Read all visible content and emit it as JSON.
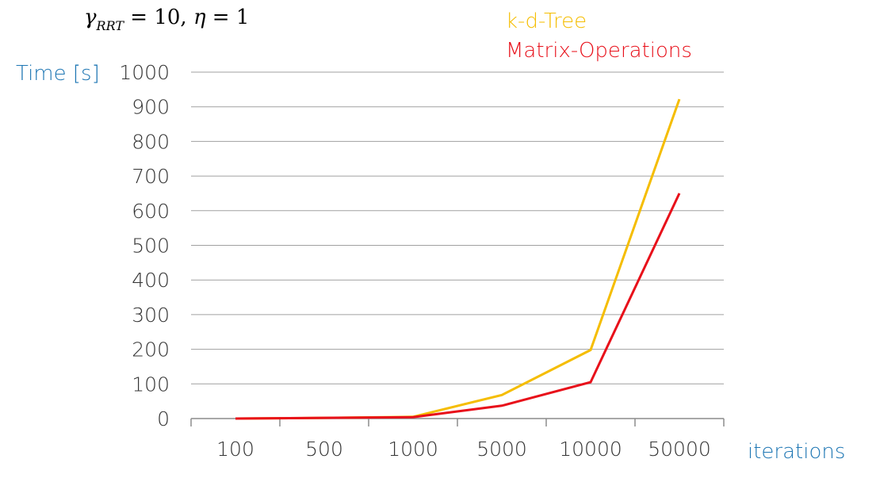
{
  "chart_data": {
    "type": "line",
    "annotation": "γRRT = 10, η = 1",
    "ylabel": "Time [s]",
    "xlabel": "iterations",
    "categories": [
      "100",
      "500",
      "1000",
      "5000",
      "10000",
      "50000"
    ],
    "ylim": [
      0,
      1000
    ],
    "yticks": [
      0,
      100,
      200,
      300,
      400,
      500,
      600,
      700,
      800,
      900,
      1000
    ],
    "grid": true,
    "legend_position": "top-right",
    "series": [
      {
        "name": "k-d-Tree",
        "color": "#f5bd00",
        "values": [
          0,
          2,
          5,
          68,
          198,
          922
        ]
      },
      {
        "name": "Matrix-Operations",
        "color": "#e8101a",
        "values": [
          0,
          2,
          4,
          37,
          105,
          650
        ]
      }
    ]
  }
}
